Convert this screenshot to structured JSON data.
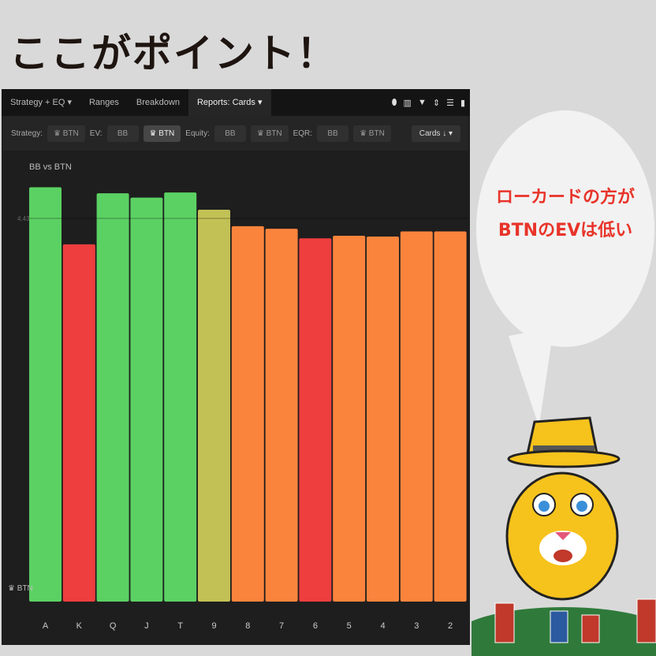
{
  "headline": "ここがポイント！",
  "tabs": [
    {
      "label": "Strategy + EQ ▾"
    },
    {
      "label": "Ranges"
    },
    {
      "label": "Breakdown"
    },
    {
      "label": "Reports: Cards ▾"
    }
  ],
  "filters": {
    "strategy_label": "Strategy:",
    "strategy_btn": "♛ BTN",
    "ev_label": "EV:",
    "ev_bb": "BB",
    "ev_btn": "♛ BTN",
    "equity_label": "Equity:",
    "equity_bb": "BB",
    "equity_btn": "♛ BTN",
    "eqr_label": "EQR:",
    "eqr_bb": "BB",
    "eqr_btn": "♛ BTN",
    "sort": "Cards ↓ ▾"
  },
  "bubble": {
    "line1": "ローカードの方が",
    "line2": "BTNのEVは低い"
  },
  "chart_data": {
    "type": "bar",
    "title": "BB vs BTN",
    "ylabel": "♛ BTN",
    "reference_line": 4.43,
    "reference_label": "4.43",
    "categories": [
      "A",
      "K",
      "Q",
      "J",
      "T",
      "9",
      "8",
      "7",
      "6",
      "5",
      "4",
      "3",
      "2"
    ],
    "values": [
      4.79,
      4.13,
      4.72,
      4.67,
      4.73,
      4.53,
      4.34,
      4.31,
      4.2,
      4.23,
      4.22,
      4.28,
      4.28
    ],
    "colors": [
      "#5bd163",
      "#ee3e3e",
      "#5bd163",
      "#5bd163",
      "#5bd163",
      "#c2c155",
      "#fb843d",
      "#fb843d",
      "#ee3e3e",
      "#fb843d",
      "#fb843d",
      "#fb843d",
      "#fb843d"
    ],
    "ylim": [
      0,
      5
    ]
  }
}
